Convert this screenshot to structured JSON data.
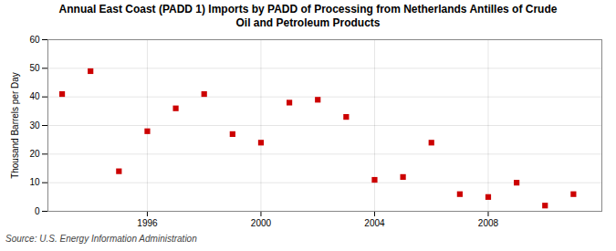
{
  "chart_data": {
    "type": "scatter",
    "title": "Annual East Coast (PADD 1) Imports by PADD of Processing from Netherlands Antilles of Crude\nOil and Petroleum Products",
    "ylabel": "Thousand Barrels per Day",
    "source": "Source: U.S. Energy Information Administration",
    "x": [
      1993,
      1994,
      1995,
      1996,
      1997,
      1998,
      1999,
      2000,
      2001,
      2002,
      2003,
      2004,
      2005,
      2006,
      2007,
      2008,
      2009,
      2010,
      2011
    ],
    "values": [
      41,
      49,
      14,
      28,
      36,
      41,
      27,
      24,
      38,
      39,
      33,
      11,
      12,
      24,
      6,
      5,
      10,
      2,
      6
    ],
    "color": "#cc0000",
    "marker": "square",
    "xlim": [
      1992.5,
      2012
    ],
    "xticks": [
      1996,
      2000,
      2004,
      2008
    ],
    "ylim": [
      0,
      60
    ],
    "yticks": [
      0,
      10,
      20,
      30,
      40,
      50,
      60
    ],
    "grid": true
  }
}
